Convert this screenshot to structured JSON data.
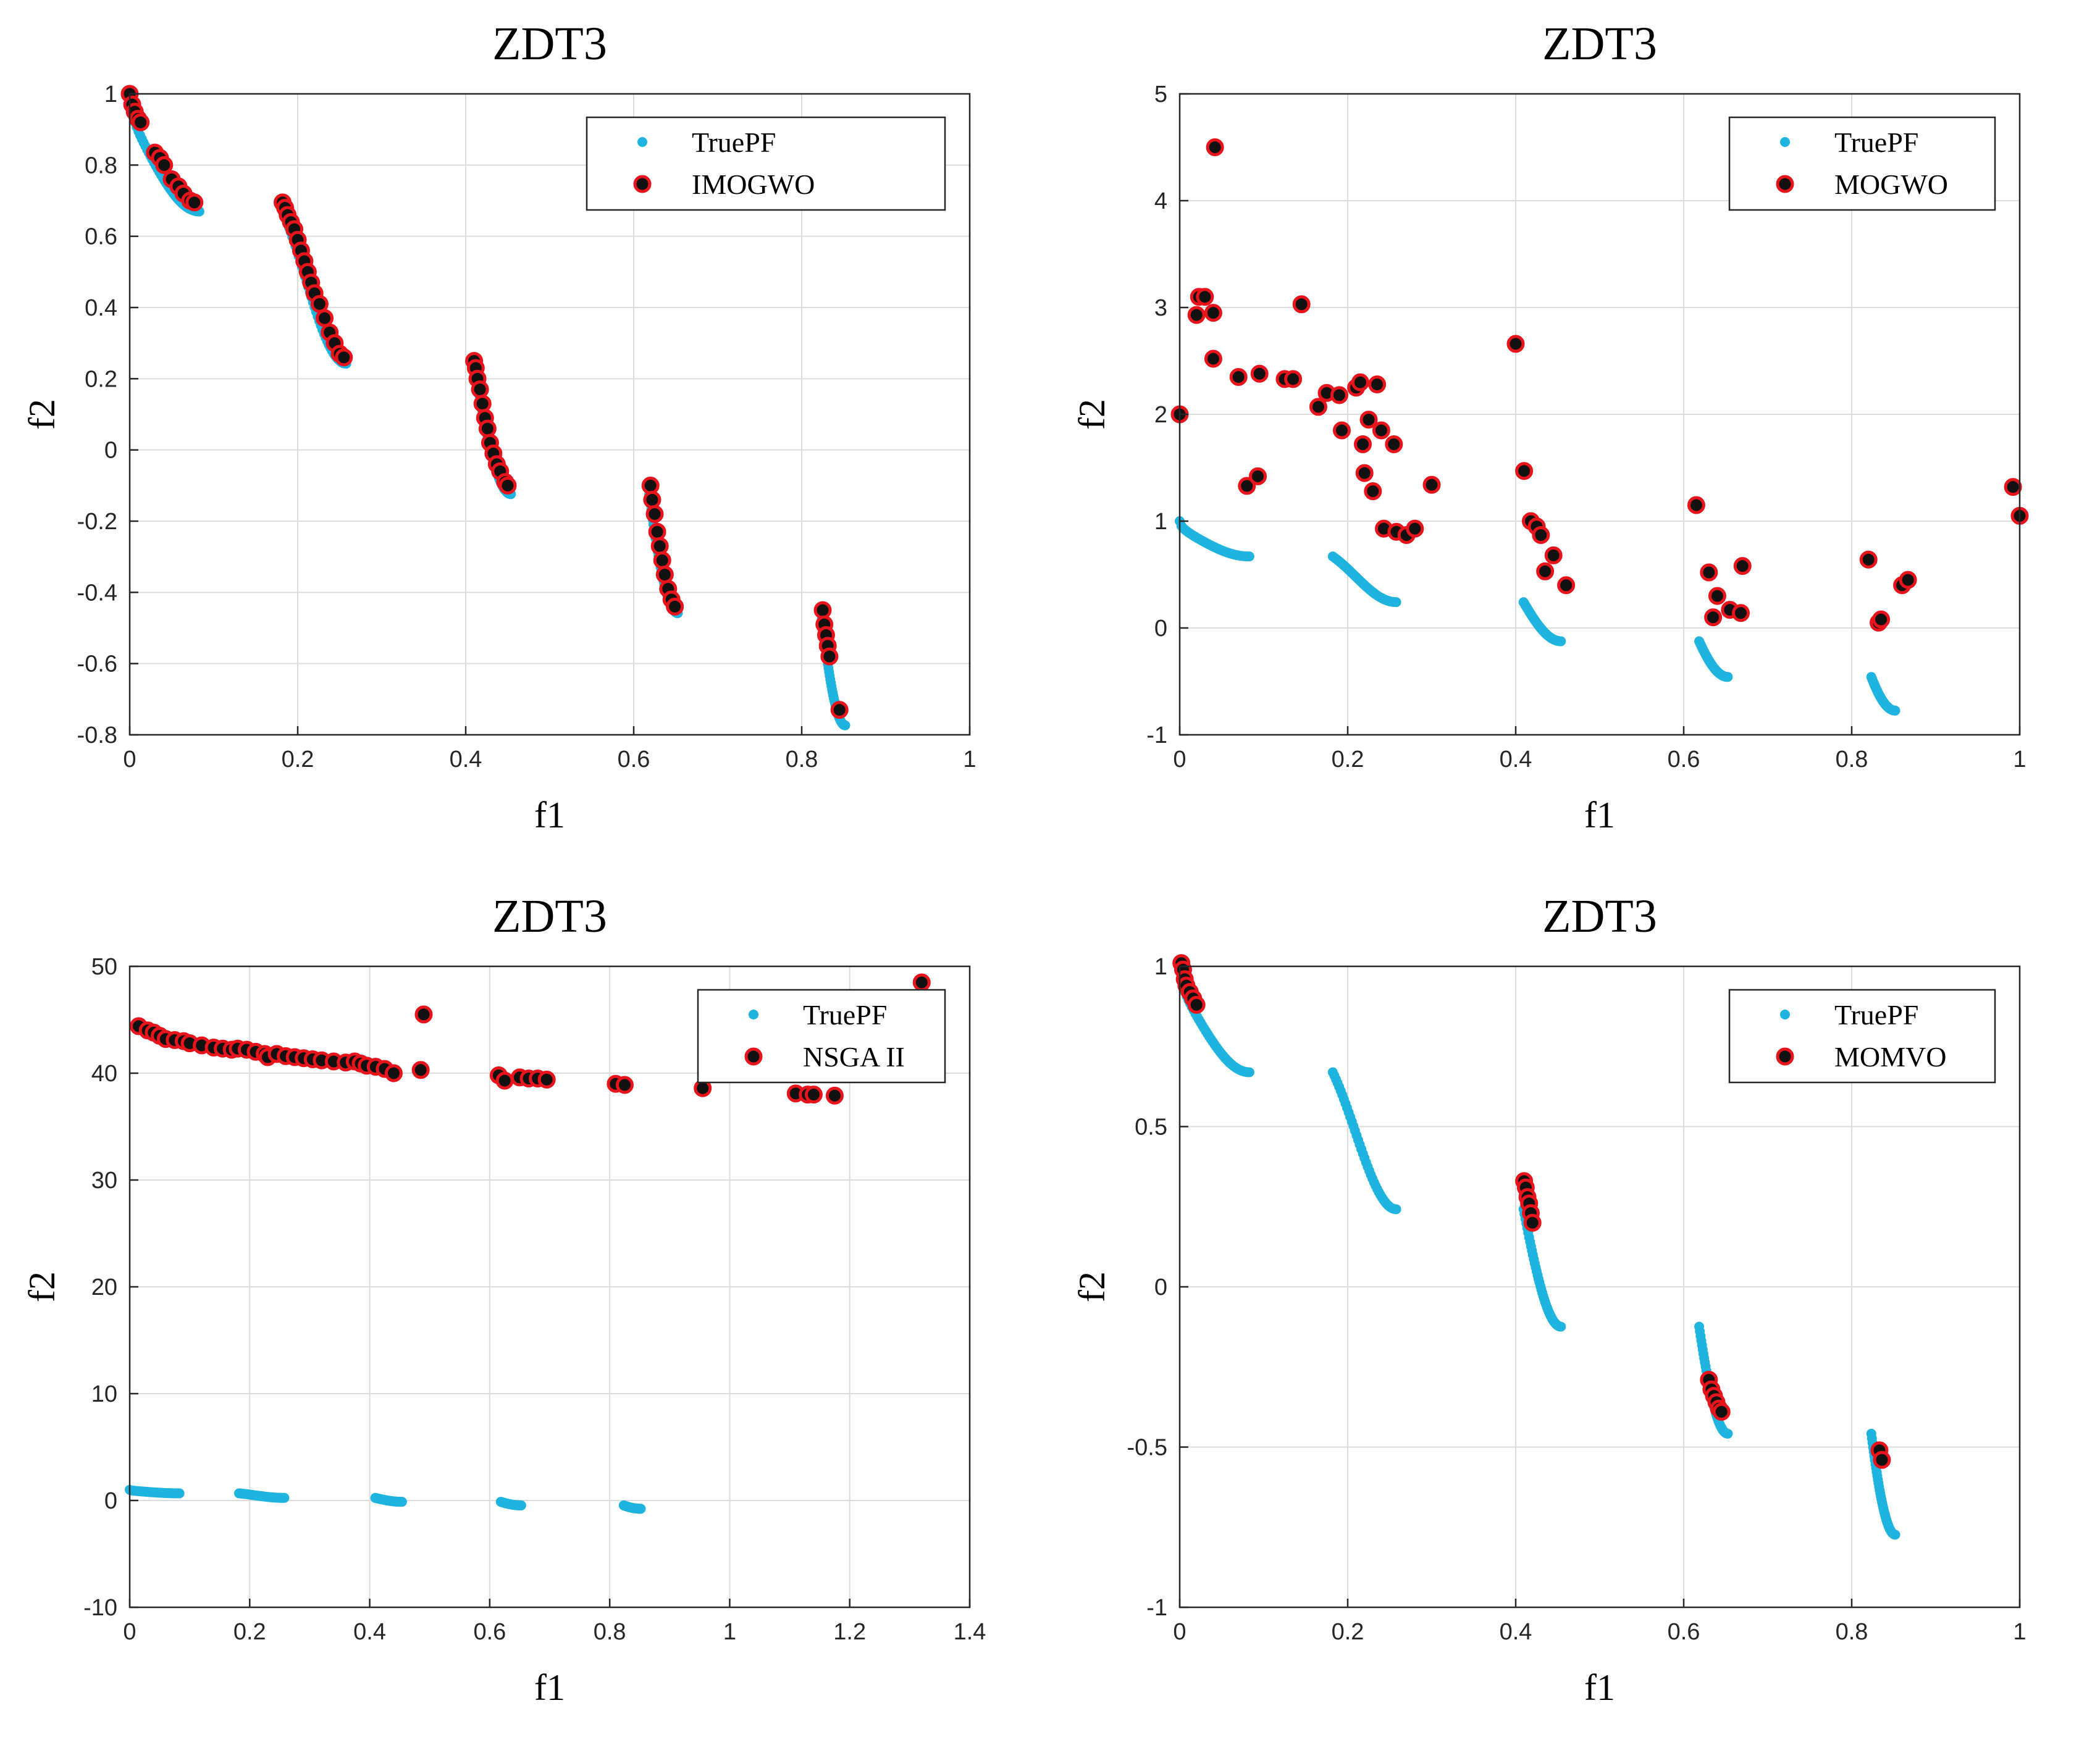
{
  "chart_data": [
    {
      "type": "scatter",
      "title": "ZDT3",
      "xlabel": "f1",
      "ylabel": "f2",
      "xlim": [
        0,
        1
      ],
      "ylim": [
        -0.8,
        1
      ],
      "xticks": [
        0,
        0.2,
        0.4,
        0.6,
        0.8,
        1
      ],
      "xtick_labels": [
        "0",
        "0.2",
        "0.4",
        "0.6",
        "0.8",
        "1"
      ],
      "yticks": [
        -0.8,
        -0.6,
        -0.4,
        -0.2,
        0,
        0.2,
        0.4,
        0.6,
        0.8,
        1
      ],
      "ytick_labels": [
        "-0.8",
        "-0.6",
        "-0.4",
        "-0.2",
        "0",
        "0.2",
        "0.4",
        "0.6",
        "0.8",
        "1"
      ],
      "grid": true,
      "legend_position": "top-right",
      "series": [
        {
          "name": "TruePF",
          "color": "#1fb4e0",
          "values": "ZDT3 true Pareto front (5 segments)"
        },
        {
          "name": "IMOGWO",
          "color": "#e8141c",
          "points": [
            [
              0.0,
              1.0
            ],
            [
              0.003,
              0.97
            ],
            [
              0.006,
              0.95
            ],
            [
              0.01,
              0.93
            ],
            [
              0.013,
              0.92
            ],
            [
              0.03,
              0.835
            ],
            [
              0.036,
              0.82
            ],
            [
              0.041,
              0.8
            ],
            [
              0.05,
              0.76
            ],
            [
              0.058,
              0.74
            ],
            [
              0.064,
              0.72
            ],
            [
              0.072,
              0.7
            ],
            [
              0.077,
              0.695
            ],
            [
              0.182,
              0.695
            ],
            [
              0.185,
              0.68
            ],
            [
              0.188,
              0.66
            ],
            [
              0.192,
              0.64
            ],
            [
              0.196,
              0.62
            ],
            [
              0.2,
              0.59
            ],
            [
              0.204,
              0.56
            ],
            [
              0.208,
              0.53
            ],
            [
              0.212,
              0.5
            ],
            [
              0.216,
              0.47
            ],
            [
              0.22,
              0.44
            ],
            [
              0.226,
              0.41
            ],
            [
              0.232,
              0.37
            ],
            [
              0.238,
              0.33
            ],
            [
              0.244,
              0.3
            ],
            [
              0.25,
              0.27
            ],
            [
              0.255,
              0.26
            ],
            [
              0.41,
              0.25
            ],
            [
              0.412,
              0.23
            ],
            [
              0.414,
              0.2
            ],
            [
              0.417,
              0.17
            ],
            [
              0.42,
              0.13
            ],
            [
              0.423,
              0.09
            ],
            [
              0.426,
              0.06
            ],
            [
              0.429,
              0.02
            ],
            [
              0.433,
              -0.01
            ],
            [
              0.437,
              -0.04
            ],
            [
              0.441,
              -0.06
            ],
            [
              0.447,
              -0.09
            ],
            [
              0.45,
              -0.1
            ],
            [
              0.62,
              -0.1
            ],
            [
              0.622,
              -0.14
            ],
            [
              0.625,
              -0.18
            ],
            [
              0.628,
              -0.23
            ],
            [
              0.631,
              -0.27
            ],
            [
              0.634,
              -0.31
            ],
            [
              0.637,
              -0.35
            ],
            [
              0.641,
              -0.39
            ],
            [
              0.645,
              -0.42
            ],
            [
              0.649,
              -0.44
            ],
            [
              0.825,
              -0.45
            ],
            [
              0.827,
              -0.49
            ],
            [
              0.829,
              -0.52
            ],
            [
              0.831,
              -0.55
            ],
            [
              0.833,
              -0.58
            ],
            [
              0.845,
              -0.73
            ]
          ]
        }
      ]
    },
    {
      "type": "scatter",
      "title": "ZDT3",
      "xlabel": "f1",
      "ylabel": "f2",
      "xlim": [
        0,
        1
      ],
      "ylim": [
        -1,
        5
      ],
      "xticks": [
        0,
        0.2,
        0.4,
        0.6,
        0.8,
        1
      ],
      "xtick_labels": [
        "0",
        "0.2",
        "0.4",
        "0.6",
        "0.8",
        "1"
      ],
      "yticks": [
        -1,
        0,
        1,
        2,
        3,
        4,
        5
      ],
      "ytick_labels": [
        "-1",
        "0",
        "1",
        "2",
        "3",
        "4",
        "5"
      ],
      "grid": true,
      "legend_position": "top-right",
      "series": [
        {
          "name": "TruePF",
          "color": "#1fb4e0",
          "values": "ZDT3 true Pareto front (5 segments)"
        },
        {
          "name": "MOGWO",
          "color": "#e8141c",
          "points": [
            [
              0.0,
              2.0
            ],
            [
              0.02,
              2.93
            ],
            [
              0.023,
              3.1
            ],
            [
              0.03,
              3.1
            ],
            [
              0.04,
              2.95
            ],
            [
              0.04,
              2.52
            ],
            [
              0.042,
              4.5
            ],
            [
              0.07,
              2.35
            ],
            [
              0.08,
              1.33
            ],
            [
              0.093,
              1.42
            ],
            [
              0.095,
              2.38
            ],
            [
              0.125,
              2.33
            ],
            [
              0.135,
              2.33
            ],
            [
              0.145,
              3.03
            ],
            [
              0.165,
              2.07
            ],
            [
              0.175,
              2.2
            ],
            [
              0.19,
              2.18
            ],
            [
              0.193,
              1.85
            ],
            [
              0.21,
              2.25
            ],
            [
              0.215,
              2.3
            ],
            [
              0.218,
              1.72
            ],
            [
              0.22,
              1.45
            ],
            [
              0.225,
              1.95
            ],
            [
              0.23,
              1.28
            ],
            [
              0.235,
              2.28
            ],
            [
              0.24,
              1.85
            ],
            [
              0.243,
              0.93
            ],
            [
              0.255,
              1.72
            ],
            [
              0.258,
              0.9
            ],
            [
              0.27,
              0.87
            ],
            [
              0.28,
              0.93
            ],
            [
              0.3,
              1.34
            ],
            [
              0.4,
              2.66
            ],
            [
              0.41,
              1.47
            ],
            [
              0.418,
              1.0
            ],
            [
              0.425,
              0.95
            ],
            [
              0.43,
              0.87
            ],
            [
              0.435,
              0.53
            ],
            [
              0.445,
              0.68
            ],
            [
              0.46,
              0.4
            ],
            [
              0.615,
              1.15
            ],
            [
              0.63,
              0.52
            ],
            [
              0.635,
              0.1
            ],
            [
              0.64,
              0.3
            ],
            [
              0.655,
              0.17
            ],
            [
              0.668,
              0.14
            ],
            [
              0.67,
              0.58
            ],
            [
              0.82,
              0.64
            ],
            [
              0.832,
              0.05
            ],
            [
              0.835,
              0.08
            ],
            [
              0.86,
              0.4
            ],
            [
              0.867,
              0.45
            ],
            [
              0.992,
              1.32
            ],
            [
              1.0,
              1.05
            ]
          ]
        }
      ]
    },
    {
      "type": "scatter",
      "title": "ZDT3",
      "xlabel": "f1",
      "ylabel": "f2",
      "xlim": [
        0,
        1.4
      ],
      "ylim": [
        -10,
        50
      ],
      "xticks": [
        0,
        0.2,
        0.4,
        0.6,
        0.8,
        1,
        1.2,
        1.4
      ],
      "xtick_labels": [
        "0",
        "0.2",
        "0.4",
        "0.6",
        "0.8",
        "1",
        "1.2",
        "1.4"
      ],
      "yticks": [
        -10,
        0,
        10,
        20,
        30,
        40,
        50
      ],
      "ytick_labels": [
        "-10",
        "0",
        "10",
        "20",
        "30",
        "40",
        "50"
      ],
      "grid": true,
      "legend_position": "top-right",
      "series": [
        {
          "name": "TruePF",
          "color": "#1fb4e0",
          "values": "ZDT3 true Pareto front (5 segments)"
        },
        {
          "name": "NSGA II",
          "color": "#e8141c",
          "points": [
            [
              0.015,
              44.4
            ],
            [
              0.03,
              44.0
            ],
            [
              0.04,
              43.8
            ],
            [
              0.05,
              43.5
            ],
            [
              0.06,
              43.2
            ],
            [
              0.075,
              43.1
            ],
            [
              0.09,
              43.0
            ],
            [
              0.1,
              42.8
            ],
            [
              0.12,
              42.6
            ],
            [
              0.14,
              42.4
            ],
            [
              0.155,
              42.3
            ],
            [
              0.17,
              42.2
            ],
            [
              0.18,
              42.3
            ],
            [
              0.195,
              42.2
            ],
            [
              0.21,
              42.0
            ],
            [
              0.225,
              41.8
            ],
            [
              0.23,
              41.5
            ],
            [
              0.245,
              41.8
            ],
            [
              0.26,
              41.6
            ],
            [
              0.275,
              41.5
            ],
            [
              0.29,
              41.4
            ],
            [
              0.305,
              41.3
            ],
            [
              0.32,
              41.2
            ],
            [
              0.34,
              41.1
            ],
            [
              0.36,
              41.0
            ],
            [
              0.375,
              41.1
            ],
            [
              0.385,
              40.9
            ],
            [
              0.395,
              40.7
            ],
            [
              0.41,
              40.6
            ],
            [
              0.425,
              40.4
            ],
            [
              0.44,
              40.0
            ],
            [
              0.485,
              40.3
            ],
            [
              0.49,
              45.5
            ],
            [
              0.615,
              39.8
            ],
            [
              0.625,
              39.3
            ],
            [
              0.65,
              39.6
            ],
            [
              0.665,
              39.5
            ],
            [
              0.68,
              39.5
            ],
            [
              0.695,
              39.4
            ],
            [
              0.81,
              39.0
            ],
            [
              0.825,
              38.9
            ],
            [
              0.955,
              38.6
            ],
            [
              1.11,
              38.1
            ],
            [
              1.13,
              38.0
            ],
            [
              1.14,
              38.0
            ],
            [
              1.175,
              37.9
            ],
            [
              1.32,
              48.5
            ]
          ]
        }
      ]
    },
    {
      "type": "scatter",
      "title": "ZDT3",
      "xlabel": "f1",
      "ylabel": "f2",
      "xlim": [
        0,
        1
      ],
      "ylim": [
        -1,
        1
      ],
      "xticks": [
        0,
        0.2,
        0.4,
        0.6,
        0.8,
        1
      ],
      "xtick_labels": [
        "0",
        "0.2",
        "0.4",
        "0.6",
        "0.8",
        "1"
      ],
      "yticks": [
        -1,
        -0.5,
        0,
        0.5,
        1
      ],
      "ytick_labels": [
        "-1",
        "-0.5",
        "0",
        "0.5",
        "1"
      ],
      "grid": true,
      "legend_position": "top-right",
      "series": [
        {
          "name": "TruePF",
          "color": "#1fb4e0",
          "values": "ZDT3 true Pareto front (5 segments)"
        },
        {
          "name": "MOMVO",
          "color": "#e8141c",
          "points": [
            [
              0.002,
              1.01
            ],
            [
              0.004,
              0.99
            ],
            [
              0.006,
              0.96
            ],
            [
              0.008,
              0.94
            ],
            [
              0.012,
              0.92
            ],
            [
              0.016,
              0.9
            ],
            [
              0.02,
              0.88
            ],
            [
              0.41,
              0.33
            ],
            [
              0.412,
              0.31
            ],
            [
              0.414,
              0.28
            ],
            [
              0.416,
              0.26
            ],
            [
              0.418,
              0.23
            ],
            [
              0.42,
              0.2
            ],
            [
              0.63,
              -0.29
            ],
            [
              0.633,
              -0.32
            ],
            [
              0.636,
              -0.34
            ],
            [
              0.639,
              -0.36
            ],
            [
              0.642,
              -0.38
            ],
            [
              0.645,
              -0.39
            ],
            [
              0.833,
              -0.51
            ],
            [
              0.836,
              -0.54
            ]
          ]
        }
      ]
    }
  ]
}
